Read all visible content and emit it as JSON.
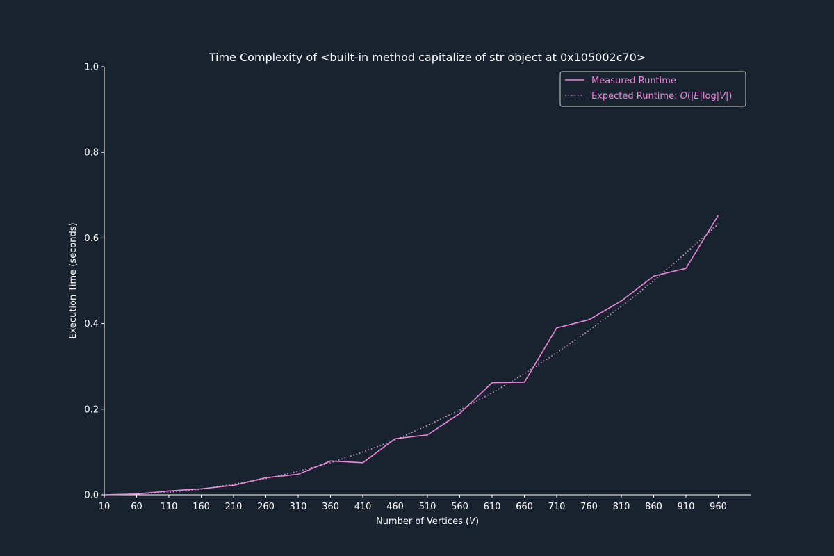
{
  "colors": {
    "background": "#192330",
    "axis": "#ffffff",
    "measured": "#ee88dd",
    "expected": "#dda0dd",
    "legend_border": "#d0d0d0"
  },
  "chart_data": {
    "type": "line",
    "title": "Time Complexity of <built-in method capitalize of str object at 0x105002c70>",
    "xlabel": "Number of Vertices (V)",
    "ylabel": "Execution Time (seconds)",
    "x": [
      10,
      60,
      110,
      160,
      210,
      260,
      310,
      360,
      410,
      460,
      510,
      560,
      610,
      660,
      710,
      760,
      810,
      860,
      910,
      960
    ],
    "xlim": [
      10,
      1010
    ],
    "ylim": [
      0,
      1.0
    ],
    "yticks": [
      "0.0",
      "0.2",
      "0.4",
      "0.6",
      "0.8",
      "1.0"
    ],
    "grid": false,
    "legend_position": "top-right",
    "series": [
      {
        "name": "Measured Runtime",
        "style": "solid",
        "values": [
          0.0,
          0.002,
          0.009,
          0.014,
          0.022,
          0.04,
          0.048,
          0.079,
          0.075,
          0.131,
          0.14,
          0.19,
          0.262,
          0.263,
          0.39,
          0.409,
          0.453,
          0.511,
          0.529,
          0.653
        ]
      },
      {
        "name": "Expected Runtime: O(|E|log|V|)",
        "style": "dotted",
        "values": [
          0.0,
          0.002,
          0.006,
          0.013,
          0.025,
          0.038,
          0.055,
          0.075,
          0.1,
          0.128,
          0.162,
          0.198,
          0.238,
          0.283,
          0.332,
          0.384,
          0.44,
          0.5,
          0.565,
          0.633
        ]
      }
    ]
  }
}
